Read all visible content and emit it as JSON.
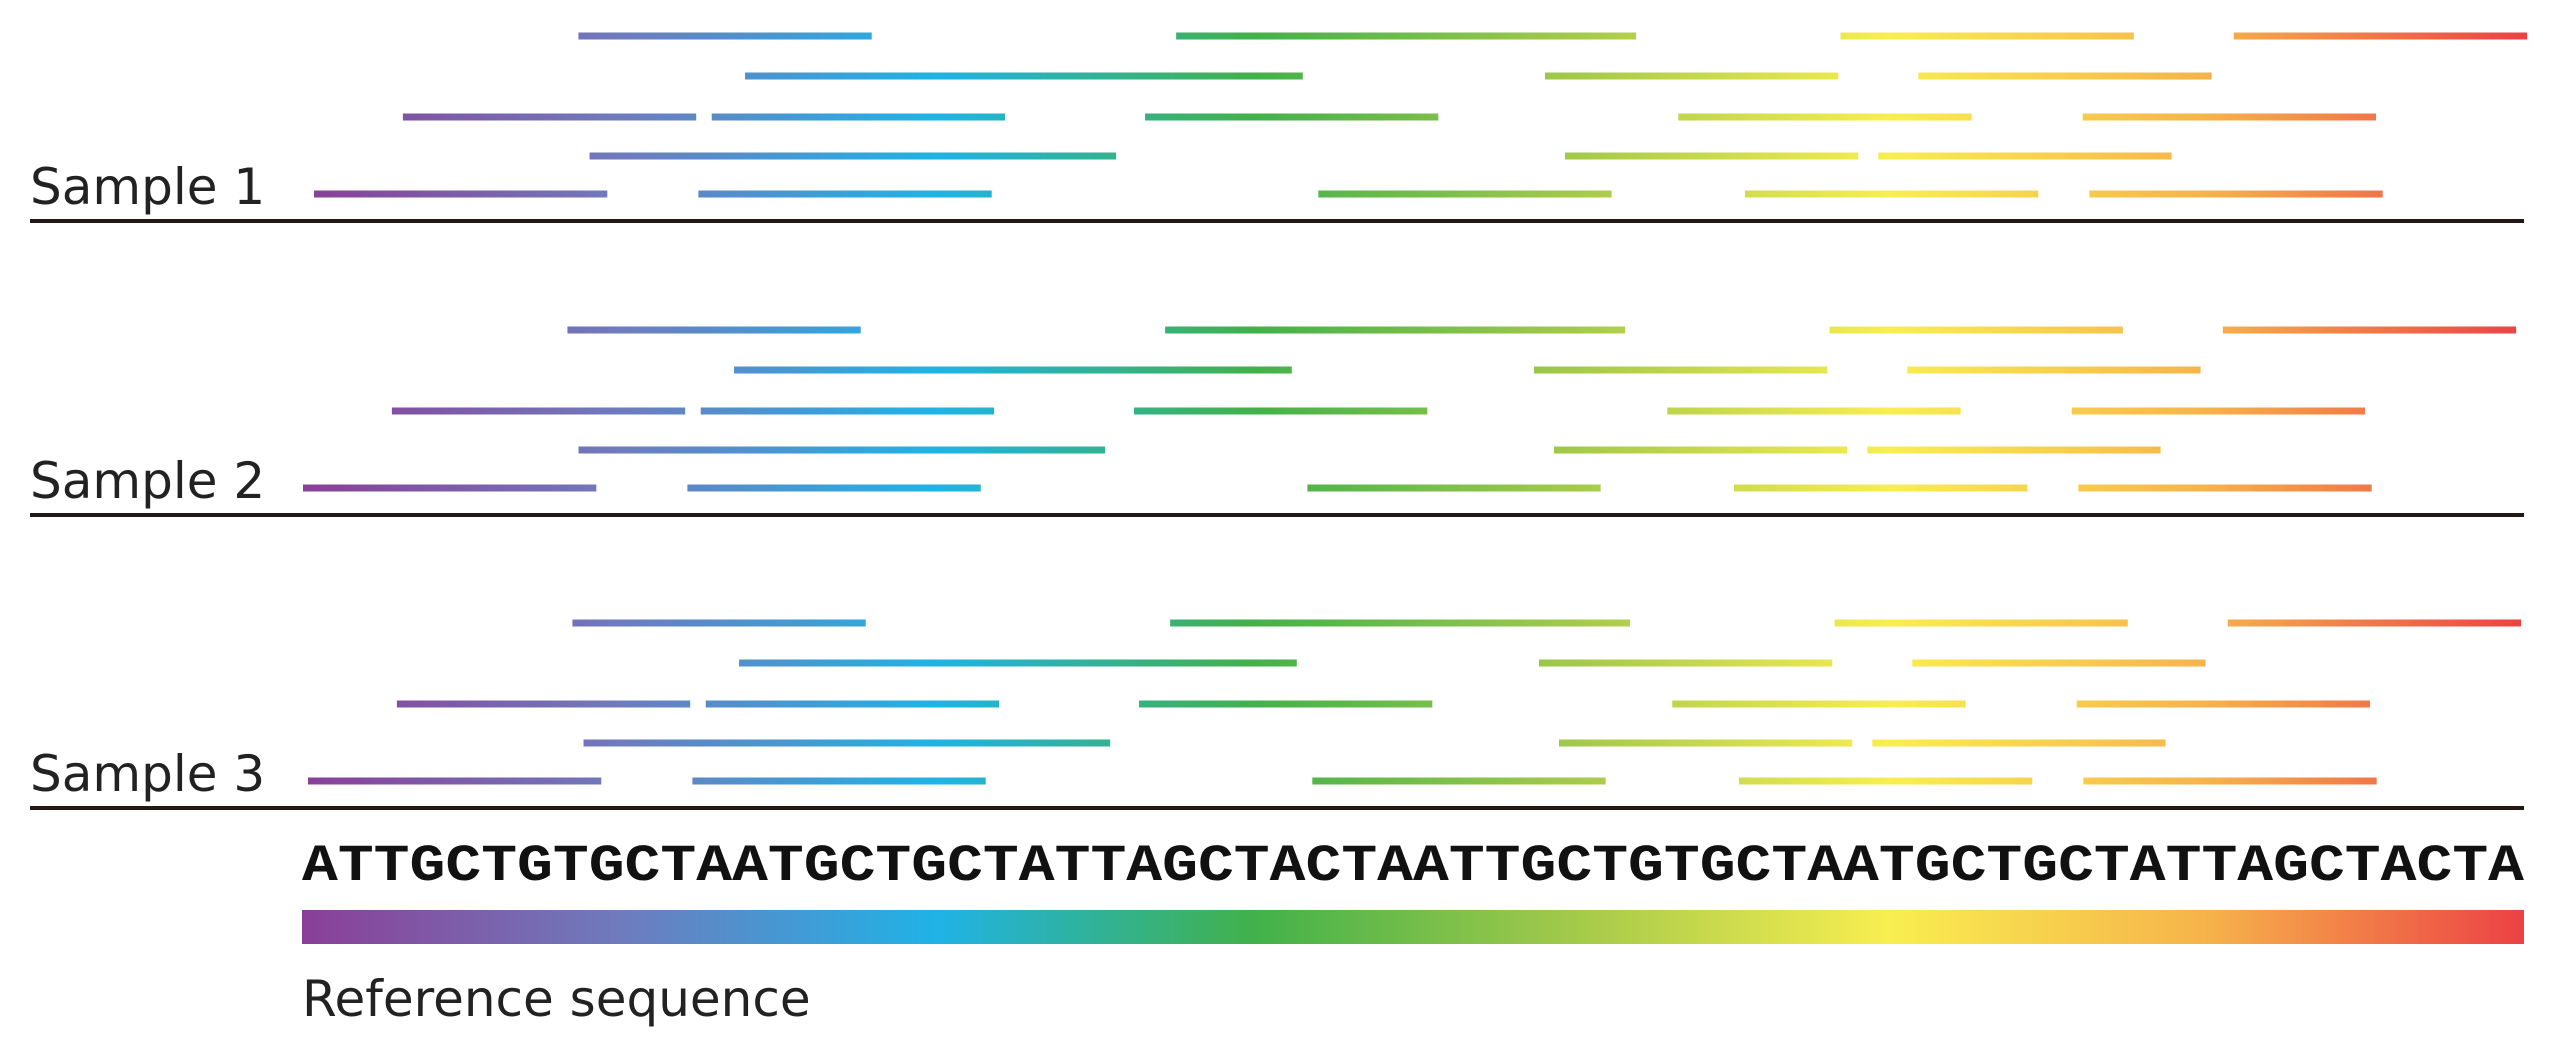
{
  "samples": [
    {
      "label": "Sample 1",
      "reads": [
        [
          0.0,
          0.132
        ],
        [
          0.04,
          0.172
        ],
        [
          0.119,
          0.251
        ],
        [
          0.124,
          0.256
        ],
        [
          0.194,
          0.326
        ],
        [
          0.173,
          0.305
        ],
        [
          0.179,
          0.311
        ],
        [
          0.229,
          0.361
        ],
        [
          0.313,
          0.445
        ],
        [
          0.388,
          0.52
        ],
        [
          0.374,
          0.506
        ],
        [
          0.452,
          0.584
        ],
        [
          0.463,
          0.595
        ],
        [
          0.554,
          0.686
        ],
        [
          0.563,
          0.695
        ],
        [
          0.614,
          0.746
        ],
        [
          0.644,
          0.776
        ],
        [
          0.687,
          0.819
        ],
        [
          0.704,
          0.836
        ],
        [
          0.722,
          0.854
        ],
        [
          0.796,
          0.928
        ],
        [
          0.799,
          0.931
        ],
        [
          0.864,
          0.996
        ]
      ]
    },
    {
      "label": "Sample 2",
      "reads": [
        [
          0.0,
          0.132
        ],
        [
          0.04,
          0.172
        ],
        [
          0.119,
          0.251
        ],
        [
          0.124,
          0.256
        ],
        [
          0.194,
          0.326
        ],
        [
          0.173,
          0.305
        ],
        [
          0.179,
          0.311
        ],
        [
          0.229,
          0.361
        ],
        [
          0.313,
          0.445
        ],
        [
          0.388,
          0.52
        ],
        [
          0.374,
          0.506
        ],
        [
          0.452,
          0.584
        ],
        [
          0.463,
          0.595
        ],
        [
          0.554,
          0.686
        ],
        [
          0.563,
          0.695
        ],
        [
          0.614,
          0.746
        ],
        [
          0.644,
          0.776
        ],
        [
          0.687,
          0.819
        ],
        [
          0.704,
          0.836
        ],
        [
          0.722,
          0.854
        ],
        [
          0.796,
          0.928
        ],
        [
          0.799,
          0.931
        ],
        [
          0.864,
          0.996
        ]
      ]
    },
    {
      "label": "Sample 3",
      "reads": [
        [
          0.0,
          0.132
        ],
        [
          0.04,
          0.172
        ],
        [
          0.119,
          0.251
        ],
        [
          0.124,
          0.256
        ],
        [
          0.194,
          0.326
        ],
        [
          0.173,
          0.305
        ],
        [
          0.179,
          0.311
        ],
        [
          0.229,
          0.361
        ],
        [
          0.313,
          0.445
        ],
        [
          0.388,
          0.52
        ],
        [
          0.374,
          0.506
        ],
        [
          0.452,
          0.584
        ],
        [
          0.463,
          0.595
        ],
        [
          0.554,
          0.686
        ],
        [
          0.563,
          0.695
        ],
        [
          0.614,
          0.746
        ],
        [
          0.644,
          0.776
        ],
        [
          0.687,
          0.819
        ],
        [
          0.704,
          0.836
        ],
        [
          0.722,
          0.854
        ],
        [
          0.796,
          0.928
        ],
        [
          0.799,
          0.931
        ],
        [
          0.864,
          0.996
        ]
      ]
    }
  ],
  "reference": {
    "sequence": "ATTGCTGTGCTAATGCTGCTATTAGCTACTAATTGCTGTGCTAATGCTGCTATTAGCTACTA",
    "caption": "Reference sequence"
  },
  "colors": {
    "gradient": [
      "#8a3f97",
      "#6f7bbd",
      "#1fb3e6",
      "#42b14a",
      "#a3c94a",
      "#f8ee50",
      "#f6b34a",
      "#ec4145"
    ],
    "axis_line": "#231815"
  }
}
